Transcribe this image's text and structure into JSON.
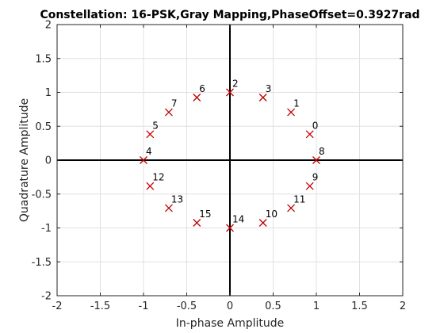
{
  "chart_data": {
    "type": "scatter",
    "title": "Constellation: 16-PSK,Gray Mapping,PhaseOffset=0.3927rad",
    "xlabel": "In-phase Amplitude",
    "ylabel": "Quadrature Amplitude",
    "xlim": [
      -2,
      2
    ],
    "ylim": [
      -2,
      2
    ],
    "xticks": [
      -2,
      -1.5,
      -1,
      -0.5,
      0,
      0.5,
      1,
      1.5,
      2
    ],
    "yticks": [
      -2,
      -1.5,
      -1,
      -0.5,
      0,
      0.5,
      1,
      1.5,
      2
    ],
    "xtick_labels": [
      "-2",
      "-1.5",
      "-1",
      "-0.5",
      "0",
      "0.5",
      "1",
      "1.5",
      "2"
    ],
    "ytick_labels": [
      "-2",
      "-1.5",
      "-1",
      "-0.5",
      "0",
      "0.5",
      "1",
      "1.5",
      "2"
    ],
    "grid": true,
    "marker": "x",
    "marker_color": "#c00000",
    "points": [
      {
        "label": "0",
        "x": 0.9239,
        "y": 0.3827
      },
      {
        "label": "1",
        "x": 0.7071,
        "y": 0.7071
      },
      {
        "label": "3",
        "x": 0.3827,
        "y": 0.9239
      },
      {
        "label": "2",
        "x": 0.0,
        "y": 1.0
      },
      {
        "label": "6",
        "x": -0.3827,
        "y": 0.9239
      },
      {
        "label": "7",
        "x": -0.7071,
        "y": 0.7071
      },
      {
        "label": "5",
        "x": -0.9239,
        "y": 0.3827
      },
      {
        "label": "4",
        "x": -1.0,
        "y": 0.0
      },
      {
        "label": "12",
        "x": -0.9239,
        "y": -0.3827
      },
      {
        "label": "13",
        "x": -0.7071,
        "y": -0.7071
      },
      {
        "label": "15",
        "x": -0.3827,
        "y": -0.9239
      },
      {
        "label": "14",
        "x": 0.0,
        "y": -1.0
      },
      {
        "label": "10",
        "x": 0.3827,
        "y": -0.9239
      },
      {
        "label": "11",
        "x": 0.7071,
        "y": -0.7071
      },
      {
        "label": "9",
        "x": 0.9239,
        "y": -0.3827
      },
      {
        "label": "8",
        "x": 1.0,
        "y": 0.0
      }
    ]
  }
}
